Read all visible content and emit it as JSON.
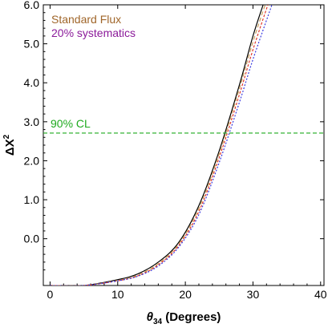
{
  "chart_data": {
    "type": "line",
    "xlabel_var": "θ",
    "xlabel_sub": "34",
    "xlabel_rest": " (Degrees)",
    "ylabel_main": "ΔX",
    "ylabel_sup": "2",
    "xlim": [
      -1,
      40.5
    ],
    "ylim": [
      -1.2,
      6.0
    ],
    "xticks": [
      {
        "v": 0,
        "label": "0"
      },
      {
        "v": 10,
        "label": "10"
      },
      {
        "v": 20,
        "label": "20"
      },
      {
        "v": 30,
        "label": "30"
      },
      {
        "v": 40,
        "label": "40"
      }
    ],
    "yticks": [
      {
        "v": 0,
        "label": "0.0"
      },
      {
        "v": 1,
        "label": "1.0"
      },
      {
        "v": 2,
        "label": "2.0"
      },
      {
        "v": 3,
        "label": "3.0"
      },
      {
        "v": 4,
        "label": "4.0"
      },
      {
        "v": 5,
        "label": "5.0"
      },
      {
        "v": 6,
        "label": "6.0"
      }
    ],
    "legend": [
      {
        "text": "Standard Flux",
        "color": "#a0662a"
      },
      {
        "text": "20% systematics",
        "color": "#8b1a9a"
      }
    ],
    "cl_line": {
      "y": 2.71,
      "label": "90% CL",
      "color": "#1faa1f"
    },
    "series": [
      {
        "color": "#000000",
        "dash": "none",
        "x": [
          0,
          5,
          10,
          13,
          16,
          19,
          22,
          25,
          28,
          30,
          31.5
        ],
        "y": [
          -1.2,
          -1.2,
          -1.05,
          -0.9,
          -0.6,
          -0.1,
          0.85,
          2.25,
          3.95,
          5.2,
          6.0
        ]
      },
      {
        "color": "#c9a060",
        "dash": "5,3",
        "x": [
          0,
          5,
          10,
          13,
          16,
          19,
          22,
          25,
          28,
          30,
          31.8
        ],
        "y": [
          -1.2,
          -1.2,
          -1.07,
          -0.93,
          -0.64,
          -0.14,
          0.78,
          2.18,
          3.85,
          5.05,
          6.0
        ]
      },
      {
        "color": "#e23a2a",
        "dash": "3,2",
        "x": [
          0,
          5,
          10,
          13,
          16,
          19,
          22,
          25,
          28,
          30,
          32.2
        ],
        "y": [
          -1.2,
          -1.2,
          -1.08,
          -0.95,
          -0.67,
          -0.18,
          0.7,
          2.08,
          3.7,
          4.85,
          6.0
        ]
      },
      {
        "color": "#3a3ae0",
        "dash": "2,2",
        "x": [
          0,
          5,
          10,
          13,
          16,
          19,
          22,
          25,
          28,
          30,
          32.8
        ],
        "y": [
          -1.2,
          -1.2,
          -1.08,
          -0.96,
          -0.7,
          -0.22,
          0.62,
          1.95,
          3.5,
          4.6,
          6.0
        ]
      }
    ]
  }
}
